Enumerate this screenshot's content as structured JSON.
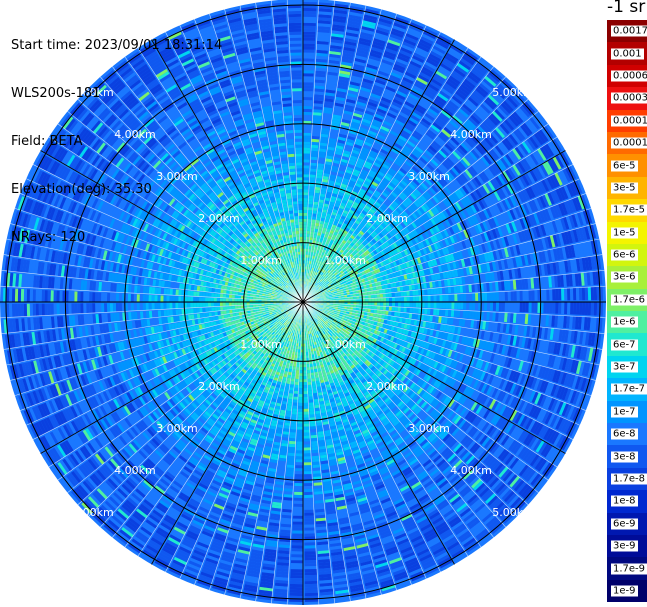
{
  "header": {
    "start_time": "Start time: 2023/09/01 18:31:14",
    "instrument": "WLS200s-181",
    "field": "Field: BETA",
    "elevation": "Elevation(deg): 35.30",
    "nrays": "NRays: 120"
  },
  "colorbar": {
    "unit_label": "-1 sr",
    "levels": [
      "0.0017",
      "0.001",
      "0.0006",
      "0.0003",
      "0.00017",
      "0.0001",
      "6e-5",
      "3e-5",
      "1.7e-5",
      "1e-5",
      "6e-6",
      "3e-6",
      "1.7e-6",
      "1e-6",
      "6e-7",
      "3e-7",
      "1.7e-7",
      "1e-7",
      "6e-8",
      "3e-8",
      "1.7e-8",
      "1e-8",
      "6e-9",
      "3e-9",
      "1.7e-9",
      "1e-9"
    ],
    "colors": [
      "#8b0000",
      "#b30000",
      "#d00000",
      "#ee1010",
      "#ff3d00",
      "#ff6a00",
      "#ff9000",
      "#ffb400",
      "#ffd800",
      "#f4f400",
      "#d2f50e",
      "#a8f03a",
      "#7ef067",
      "#4ff0a0",
      "#20e8d0",
      "#00d4f0",
      "#00b4ff",
      "#0094ff",
      "#1a78ff",
      "#1058f0",
      "#0a40e0",
      "#0028d0",
      "#0018b0",
      "#000c98",
      "#000880",
      "#00006a"
    ]
  },
  "chart_data": {
    "type": "heatmap",
    "projection": "polar-ppi",
    "field": "BETA",
    "nrays": 120,
    "range_rings_km": [
      1,
      2,
      3,
      4,
      5
    ],
    "ring_labels": [
      "1.00km",
      "2.00km",
      "3.00km",
      "4.00km",
      "5.00km"
    ],
    "spoke_angles_deg": [
      0,
      30,
      60,
      90,
      120,
      150,
      180,
      210,
      240,
      270,
      300,
      330
    ],
    "max_range_km": 5.1,
    "color_scale": "log",
    "value_range": [
      "1e-9",
      "0.0017"
    ],
    "profile_by_range": [
      {
        "range_km": 0.1,
        "beta": "~3e-7"
      },
      {
        "range_km": 1.0,
        "beta": "~3e-7"
      },
      {
        "range_km": 2.0,
        "beta": "~1.7e-7"
      },
      {
        "range_km": 3.0,
        "beta": "~6e-8"
      },
      {
        "range_km": 4.0,
        "beta": "~3e-8"
      },
      {
        "range_km": 5.0,
        "beta": "~1.7e-8"
      }
    ]
  }
}
